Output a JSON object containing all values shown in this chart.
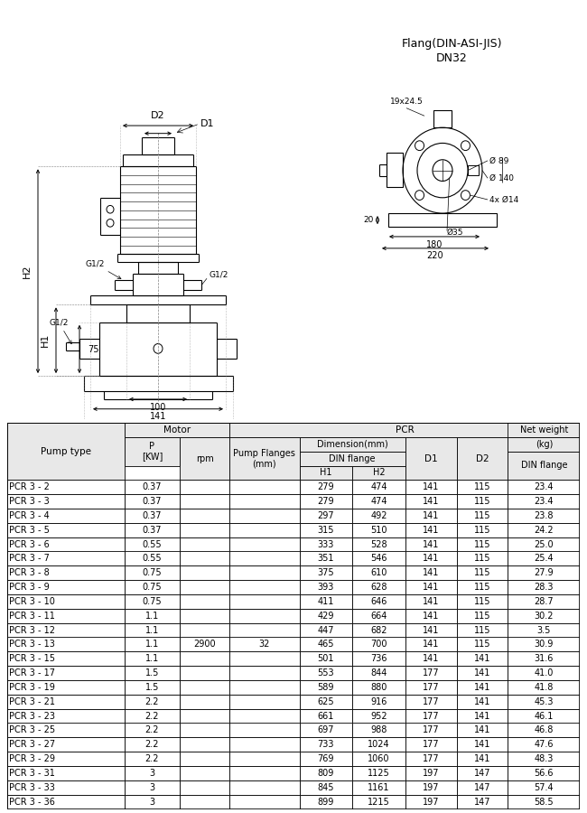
{
  "table_data": [
    [
      "PCR 3 - 2",
      "0.37",
      "",
      "",
      "279",
      "474",
      "141",
      "115",
      "23.4"
    ],
    [
      "PCR 3 - 3",
      "0.37",
      "",
      "",
      "279",
      "474",
      "141",
      "115",
      "23.4"
    ],
    [
      "PCR 3 - 4",
      "0.37",
      "",
      "",
      "297",
      "492",
      "141",
      "115",
      "23.8"
    ],
    [
      "PCR 3 - 5",
      "0.37",
      "",
      "",
      "315",
      "510",
      "141",
      "115",
      "24.2"
    ],
    [
      "PCR 3 - 6",
      "0.55",
      "",
      "",
      "333",
      "528",
      "141",
      "115",
      "25.0"
    ],
    [
      "PCR 3 - 7",
      "0.55",
      "",
      "",
      "351",
      "546",
      "141",
      "115",
      "25.4"
    ],
    [
      "PCR 3 - 8",
      "0.75",
      "",
      "",
      "375",
      "610",
      "141",
      "115",
      "27.9"
    ],
    [
      "PCR 3 - 9",
      "0.75",
      "",
      "",
      "393",
      "628",
      "141",
      "115",
      "28.3"
    ],
    [
      "PCR 3 - 10",
      "0.75",
      "",
      "",
      "411",
      "646",
      "141",
      "115",
      "28.7"
    ],
    [
      "PCR 3 - 11",
      "1.1",
      "",
      "",
      "429",
      "664",
      "141",
      "115",
      "30.2"
    ],
    [
      "PCR 3 - 12",
      "1.1",
      "",
      "",
      "447",
      "682",
      "141",
      "115",
      "3.5"
    ],
    [
      "PCR 3 - 13",
      "1.1",
      "2900",
      "32",
      "465",
      "700",
      "141",
      "115",
      "30.9"
    ],
    [
      "PCR 3 - 15",
      "1.1",
      "",
      "",
      "501",
      "736",
      "141",
      "141",
      "31.6"
    ],
    [
      "PCR 3 - 17",
      "1.5",
      "",
      "",
      "553",
      "844",
      "177",
      "141",
      "41.0"
    ],
    [
      "PCR 3 - 19",
      "1.5",
      "",
      "",
      "589",
      "880",
      "177",
      "141",
      "41.8"
    ],
    [
      "PCR 3 - 21",
      "2.2",
      "",
      "",
      "625",
      "916",
      "177",
      "141",
      "45.3"
    ],
    [
      "PCR 3 - 23",
      "2.2",
      "",
      "",
      "661",
      "952",
      "177",
      "141",
      "46.1"
    ],
    [
      "PCR 3 - 25",
      "2.2",
      "",
      "",
      "697",
      "988",
      "177",
      "141",
      "46.8"
    ],
    [
      "PCR 3 - 27",
      "2.2",
      "",
      "",
      "733",
      "1024",
      "177",
      "141",
      "47.6"
    ],
    [
      "PCR 3 - 29",
      "2.2",
      "",
      "",
      "769",
      "1060",
      "177",
      "141",
      "48.3"
    ],
    [
      "PCR 3 - 31",
      "3",
      "",
      "",
      "809",
      "1125",
      "197",
      "147",
      "56.6"
    ],
    [
      "PCR 3 - 33",
      "3",
      "",
      "",
      "845",
      "1161",
      "197",
      "147",
      "57.4"
    ],
    [
      "PCR 3 - 36",
      "3",
      "",
      "",
      "899",
      "1215",
      "197",
      "147",
      "58.5"
    ]
  ],
  "bg_color": "#ffffff",
  "line_color": "#000000",
  "header_bg": "#e8e8e8"
}
